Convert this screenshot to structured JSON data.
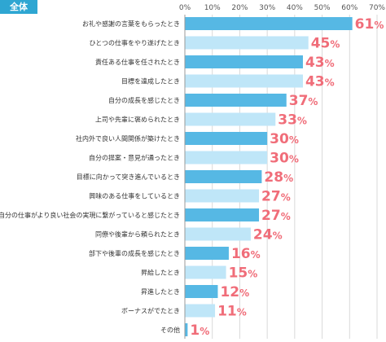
{
  "tag": "全体",
  "chart_data": {
    "type": "bar",
    "orientation": "horizontal",
    "xlim": [
      0,
      70
    ],
    "ticks": [
      "0%",
      "10%",
      "20%",
      "30%",
      "40%",
      "50%",
      "60%",
      "70%"
    ],
    "tick_values": [
      0,
      10,
      20,
      30,
      40,
      50,
      60,
      70
    ],
    "grid": true,
    "categories": [
      "お礼や感謝の言葉をもらったとき",
      "ひとつの仕事をやり遂げたとき",
      "責任ある仕事を任されたとき",
      "目標を達成したとき",
      "自分の成長を感じたとき",
      "上司や先輩に褒められたとき",
      "社内外で良い人間関係が築けたとき",
      "自分の提案・意見が通ったとき",
      "目標に向かって突き進んでいるとき",
      "興味のある仕事をしているとき",
      "自分の仕事がより良い社会の実現に繋がっていると感じたとき",
      "同僚や後輩から頼られたとき",
      "部下や後輩の成長を感じたとき",
      "昇給したとき",
      "昇進したとき",
      "ボーナスがでたとき",
      "その他"
    ],
    "values": [
      61,
      45,
      43,
      43,
      37,
      33,
      30,
      30,
      28,
      27,
      27,
      24,
      16,
      15,
      12,
      11,
      1
    ],
    "value_labels": [
      "61",
      "45",
      "43",
      "43",
      "37",
      "33",
      "30",
      "30",
      "28",
      "27",
      "27",
      "24",
      "16",
      "15",
      "12",
      "11",
      "1"
    ],
    "unit": "%",
    "colors": {
      "bar_dark": "#56b8e4",
      "bar_light": "#bfe6f8",
      "label": "#f06d79",
      "grid": "#d9d9d9",
      "text": "#333333",
      "tag_bg": "#2ea6d2"
    }
  }
}
